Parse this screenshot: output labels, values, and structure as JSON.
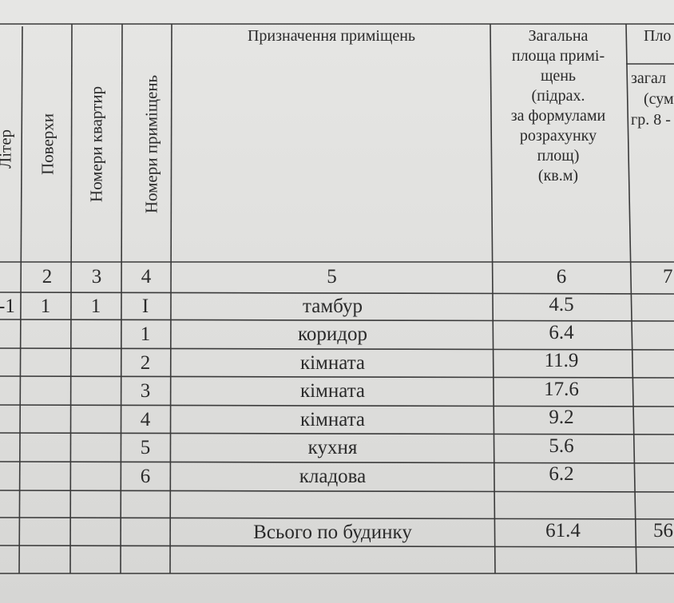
{
  "columns": {
    "c1": "Літер",
    "c2": "Поверхи",
    "c3": "Номери квартир",
    "c4": "Номери  приміщень",
    "c5": "Призначення приміщень",
    "c6_lines": [
      "Загальна",
      "площа примі-",
      "щень",
      "(підрах.",
      "за формулами",
      "розрахунку",
      "площ)",
      "(кв.м)"
    ],
    "c7_top": "Пло",
    "c7_lines": [
      "загал",
      "(сум",
      "гр. 8 -"
    ]
  },
  "column_numbers": [
    "2",
    "3",
    "4",
    "5",
    "6",
    "7"
  ],
  "rows": [
    {
      "liter": "-1",
      "floor": "1",
      "apt": "1",
      "room": "I",
      "name": "тамбур",
      "area": "4.5"
    },
    {
      "liter": "",
      "floor": "",
      "apt": "",
      "room": "1",
      "name": "коридор",
      "area": "6.4"
    },
    {
      "liter": "",
      "floor": "",
      "apt": "",
      "room": "2",
      "name": "кімната",
      "area": "11.9"
    },
    {
      "liter": "",
      "floor": "",
      "apt": "",
      "room": "3",
      "name": "кімната",
      "area": "17.6"
    },
    {
      "liter": "",
      "floor": "",
      "apt": "",
      "room": "4",
      "name": "кімната",
      "area": "9.2"
    },
    {
      "liter": "",
      "floor": "",
      "apt": "",
      "room": "5",
      "name": "кухня",
      "area": "5.6"
    },
    {
      "liter": "",
      "floor": "",
      "apt": "",
      "room": "6",
      "name": "кладова",
      "area": "6.2"
    }
  ],
  "total": {
    "label": "Всього по будинку",
    "area": "61.4",
    "col7": "56"
  }
}
